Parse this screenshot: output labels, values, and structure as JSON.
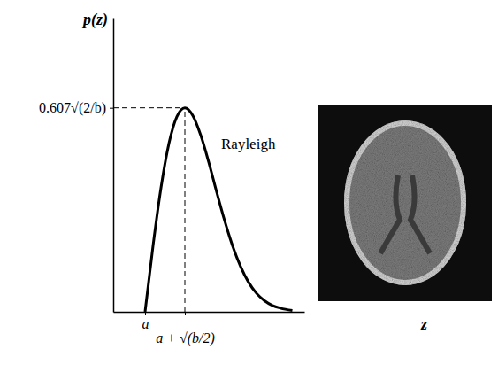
{
  "chart_data": {
    "type": "line",
    "x_label": "z",
    "y_label": "p(z)",
    "x": [
      0.8,
      1.0,
      1.2,
      1.4,
      1.6,
      1.8,
      2.0,
      2.2,
      2.4,
      2.6,
      2.8,
      3.0,
      3.2,
      3.4,
      3.6,
      3.8,
      4.0,
      4.2,
      4.5
    ],
    "series": [
      {
        "name": "Rayleigh",
        "color": "#000000",
        "values": [
          0,
          0.196,
          0.369,
          0.501,
          0.581,
          0.607,
          0.584,
          0.525,
          0.445,
          0.356,
          0.271,
          0.196,
          0.135,
          0.088,
          0.055,
          0.033,
          0.019,
          0.011,
          0.004
        ]
      }
    ],
    "xlim": [
      0,
      4.8
    ],
    "ylim": [
      0,
      0.875
    ],
    "xticks": [
      {
        "value": 0.8,
        "label": "a"
      },
      {
        "value": 1.8,
        "label": "a + √(b/2)"
      }
    ],
    "yticks": [
      {
        "value": 0.607,
        "label": "0.607√(2/b)"
      }
    ]
  }
}
